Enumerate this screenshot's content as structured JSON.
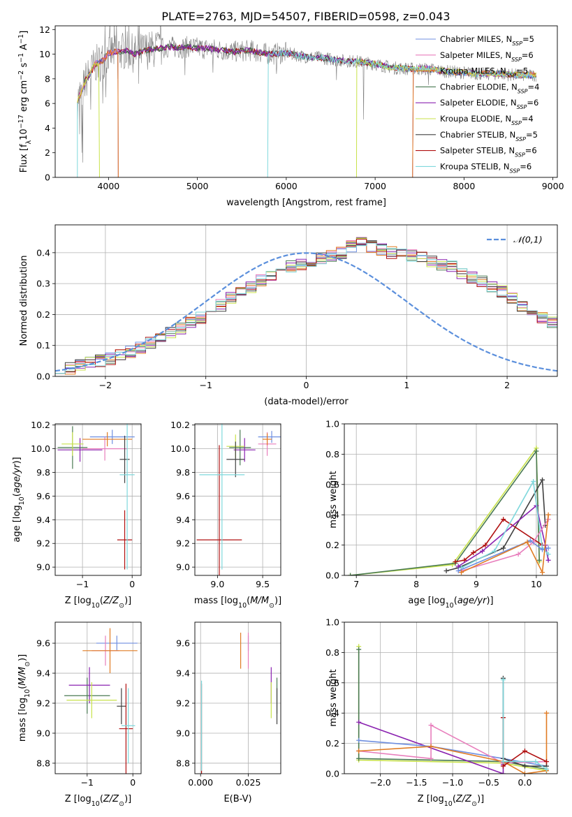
{
  "title": "PLATE=2763, MJD=54507, FIBERID=0598, z=0.043",
  "colors": {
    "Chabrier MILES": "#6f8fe0",
    "Salpeter MILES": "#e87ebc",
    "Kroupa MILES": "#e07b23",
    "Chabrier ELODIE": "#4a7a52",
    "Salpeter ELODIE": "#8a22b0",
    "Kroupa ELODIE": "#c8e24a",
    "Chabrier STELIB": "#404040",
    "Salpeter STELIB": "#b01010",
    "Kroupa STELIB": "#7fd8dc",
    "data": "#808080",
    "normal": "#5b8fdc"
  },
  "chart_data": [
    {
      "id": "spectrum",
      "type": "line",
      "xlabel": "wavelength [Angstrom, rest frame]",
      "ylabel": "Flux [f_λ 10^-17 erg cm^-2 s^-1 A^-1]",
      "xlim": [
        3400,
        9050
      ],
      "ylim": [
        0,
        12.3
      ],
      "xticks": [
        4000,
        5000,
        6000,
        7000,
        8000,
        9000
      ],
      "yticks": [
        0,
        2,
        4,
        6,
        8,
        10,
        12
      ],
      "legend_position": "upper right",
      "legend": [
        {
          "model": "Chabrier MILES",
          "label": "Chabrier MILES, N",
          "n": "=5"
        },
        {
          "model": "Salpeter MILES",
          "label": "Salpeter MILES, N",
          "n": "=6"
        },
        {
          "model": "Kroupa MILES",
          "label": "Kroupa MILES, N",
          "n": "=5"
        },
        {
          "model": "Chabrier ELODIE",
          "label": "Chabrier ELODIE, N",
          "n": "=4"
        },
        {
          "model": "Salpeter ELODIE",
          "label": "Salpeter ELODIE, N",
          "n": "=6"
        },
        {
          "model": "Kroupa ELODIE",
          "label": "Kroupa ELODIE, N",
          "n": "=4"
        },
        {
          "model": "Chabrier STELIB",
          "label": "Chabrier STELIB, N",
          "n": "=5"
        },
        {
          "model": "Salpeter STELIB",
          "label": "Salpeter STELIB, N",
          "n": "=6"
        },
        {
          "model": "Kroupa STELIB",
          "label": "Kroupa STELIB, N",
          "n": "=6"
        }
      ],
      "legend_sub": "SSP",
      "continuum": [
        [
          3650,
          6.3
        ],
        [
          3700,
          7.0
        ],
        [
          3750,
          8.0
        ],
        [
          3800,
          8.5
        ],
        [
          3850,
          9.2
        ],
        [
          3900,
          9.3
        ],
        [
          3950,
          9.6
        ],
        [
          4000,
          10.1
        ],
        [
          4100,
          10.2
        ],
        [
          4200,
          10.3
        ],
        [
          4300,
          10.0
        ],
        [
          4400,
          10.3
        ],
        [
          4500,
          10.4
        ],
        [
          4600,
          10.5
        ],
        [
          4700,
          10.6
        ],
        [
          4800,
          10.5
        ],
        [
          4900,
          10.6
        ],
        [
          5000,
          10.5
        ],
        [
          5200,
          10.4
        ],
        [
          5400,
          10.2
        ],
        [
          5600,
          10.3
        ],
        [
          5800,
          10.0
        ],
        [
          6000,
          10.1
        ],
        [
          6200,
          9.8
        ],
        [
          6400,
          9.7
        ],
        [
          6600,
          9.5
        ],
        [
          6800,
          9.4
        ],
        [
          7000,
          9.2
        ],
        [
          7200,
          8.9
        ],
        [
          7400,
          8.8
        ],
        [
          7600,
          8.8
        ],
        [
          7800,
          8.6
        ],
        [
          8000,
          8.5
        ],
        [
          8200,
          8.4
        ],
        [
          8400,
          8.4
        ],
        [
          8600,
          8.3
        ],
        [
          8800,
          8.3
        ]
      ],
      "model_dropouts": [
        {
          "model": "Chabrier MILES",
          "range": [
            4110,
            7420
          ]
        },
        {
          "model": "Salpeter MILES",
          "range": [
            4110,
            7420
          ]
        },
        {
          "model": "Kroupa MILES",
          "range": [
            4110,
            7420
          ]
        },
        {
          "model": "Kroupa ELODIE",
          "range": [
            3900,
            6790
          ]
        },
        {
          "model": "Kroupa STELIB",
          "range": [
            3650,
            5790
          ]
        }
      ],
      "data_dips": [
        [
          3675,
          3.5
        ],
        [
          3700,
          2.0
        ],
        [
          3710,
          1.2
        ],
        [
          3800,
          5.5
        ],
        [
          3935,
          6.0
        ],
        [
          3970,
          6.5
        ],
        [
          4105,
          8.0
        ],
        [
          4340,
          7.6
        ],
        [
          4860,
          8.3
        ],
        [
          5175,
          8.5
        ],
        [
          5890,
          8.4
        ],
        [
          6565,
          7.9
        ],
        [
          6870,
          4.7
        ],
        [
          7600,
          7.5
        ]
      ]
    },
    {
      "id": "residuals",
      "type": "histogram",
      "xlabel": "(data-model)/error",
      "ylabel": "Normed distribution",
      "xlim": [
        -2.5,
        2.5
      ],
      "ylim": [
        0,
        0.49
      ],
      "xticks": [
        -2,
        -1,
        0,
        1,
        2
      ],
      "yticks": [
        0.0,
        0.1,
        0.2,
        0.3,
        0.4
      ],
      "bin_width": 0.1,
      "bin_start": -2.5,
      "reference_label": "𝒩(0,1)",
      "mean_hist": [
        0.03,
        0.025,
        0.04,
        0.045,
        0.05,
        0.058,
        0.068,
        0.08,
        0.092,
        0.108,
        0.125,
        0.14,
        0.155,
        0.175,
        0.19,
        0.21,
        0.23,
        0.255,
        0.275,
        0.29,
        0.31,
        0.33,
        0.345,
        0.355,
        0.365,
        0.375,
        0.38,
        0.39,
        0.4,
        0.42,
        0.43,
        0.42,
        0.41,
        0.4,
        0.395,
        0.39,
        0.385,
        0.37,
        0.36,
        0.355,
        0.33,
        0.32,
        0.305,
        0.29,
        0.275,
        0.255,
        0.23,
        0.21,
        0.19,
        0.175,
        0.16,
        0.15,
        0.13,
        0.11,
        0.095,
        0.08,
        0.068,
        0.058,
        0.05,
        0.042,
        0.035,
        0.028,
        0.025,
        0.022,
        0.02,
        0.025,
        0.03,
        0.028,
        0.032,
        0.03
      ]
    },
    {
      "id": "age-vs-Z",
      "type": "errorbar",
      "xlabel": "Z [log10(Z/Z☉)]",
      "ylabel": "age  [log10(age/yr)]",
      "xlim": [
        -1.55,
        0.18
      ],
      "ylim": [
        8.93,
        10.21
      ],
      "xticks": [
        -1,
        0
      ],
      "yticks": [
        9.0,
        9.2,
        9.4,
        9.6,
        9.8,
        10.0,
        10.2
      ],
      "points": [
        {
          "model": "Chabrier MILES",
          "x": -0.4,
          "y": 10.1,
          "xerr": 0.45,
          "yerr": 0.06
        },
        {
          "model": "Salpeter MILES",
          "x": -0.55,
          "y": 10.0,
          "xerr": 0.45,
          "yerr": 0.1
        },
        {
          "model": "Kroupa MILES",
          "x": -0.5,
          "y": 10.08,
          "xerr": 0.5,
          "yerr": 0.06
        },
        {
          "model": "Chabrier ELODIE",
          "x": -1.2,
          "y": 10.01,
          "xerr": 0.3,
          "yerr": 0.18
        },
        {
          "model": "Salpeter ELODIE",
          "x": -1.05,
          "y": 9.99,
          "xerr": 0.45,
          "yerr": 0.1
        },
        {
          "model": "Kroupa ELODIE",
          "x": -1.2,
          "y": 10.04,
          "xerr": 0.22,
          "yerr": 0.1
        },
        {
          "model": "Chabrier STELIB",
          "x": -0.15,
          "y": 9.91,
          "xerr": 0.1,
          "yerr": 0.2
        },
        {
          "model": "Salpeter STELIB",
          "x": -0.15,
          "y": 9.23,
          "xerr": 0.15,
          "yerr": 0.25
        },
        {
          "model": "Kroupa STELIB",
          "x": -0.1,
          "y": 9.78,
          "xerr": 0.15,
          "yerr": 0.8
        }
      ]
    },
    {
      "id": "age-vs-mass",
      "type": "errorbar",
      "xlabel": "mass [log10(M/M☉)]",
      "ylabel": "",
      "xlim": [
        8.75,
        9.7
      ],
      "ylim": [
        8.93,
        10.21
      ],
      "xticks": [
        9.0,
        9.5
      ],
      "yticks": [
        9.0,
        9.2,
        9.4,
        9.6,
        9.8,
        10.0,
        10.2
      ],
      "points": [
        {
          "model": "Chabrier MILES",
          "x": 9.6,
          "y": 10.1,
          "xerr": 0.15,
          "yerr": 0.05
        },
        {
          "model": "Salpeter MILES",
          "x": 9.55,
          "y": 10.04,
          "xerr": 0.1,
          "yerr": 0.1
        },
        {
          "model": "Kroupa MILES",
          "x": 9.55,
          "y": 10.08,
          "xerr": 0.05,
          "yerr": 0.05
        },
        {
          "model": "Chabrier ELODIE",
          "x": 9.25,
          "y": 10.01,
          "xerr": 0.12,
          "yerr": 0.15
        },
        {
          "model": "Salpeter ELODIE",
          "x": 9.3,
          "y": 9.99,
          "xerr": 0.12,
          "yerr": 0.1
        },
        {
          "model": "Kroupa ELODIE",
          "x": 9.2,
          "y": 10.02,
          "xerr": 0.1,
          "yerr": 0.1
        },
        {
          "model": "Chabrier STELIB",
          "x": 9.2,
          "y": 9.91,
          "xerr": 0.1,
          "yerr": 0.15
        },
        {
          "model": "Salpeter STELIB",
          "x": 9.02,
          "y": 9.23,
          "xerr": 0.25,
          "yerr": 0.8
        },
        {
          "model": "Kroupa STELIB",
          "x": 9.05,
          "y": 9.78,
          "xerr": 0.25,
          "yerr": 0.8
        }
      ]
    },
    {
      "id": "weight-vs-age",
      "type": "line",
      "xlabel": "age  [log10(age/yr)]",
      "ylabel": "mass weight",
      "xlim": [
        6.8,
        10.35
      ],
      "ylim": [
        0,
        1.0
      ],
      "xticks": [
        7,
        8,
        9,
        10
      ],
      "yticks": [
        0.0,
        0.2,
        0.4,
        0.6,
        0.8,
        1.0
      ],
      "series": [
        {
          "model": "Kroupa ELODIE",
          "x": [
            6.9,
            8.6,
            10.0,
            10.05
          ],
          "y": [
            0.0,
            0.07,
            0.84,
            0.09
          ]
        },
        {
          "model": "Chabrier ELODIE",
          "x": [
            6.9,
            8.65,
            10.0,
            10.05
          ],
          "y": [
            0.0,
            0.08,
            0.82,
            0.1
          ]
        },
        {
          "model": "Chabrier STELIB",
          "x": [
            8.5,
            8.7,
            9.45,
            10.1,
            10.15
          ],
          "y": [
            0.03,
            0.05,
            0.18,
            0.63,
            0.33
          ]
        },
        {
          "model": "Salpeter STELIB",
          "x": [
            8.65,
            8.8,
            8.95,
            9.15,
            9.45,
            10.1
          ],
          "y": [
            0.09,
            0.1,
            0.15,
            0.2,
            0.37,
            0.2
          ]
        },
        {
          "model": "Salpeter ELODIE",
          "x": [
            8.7,
            9.1,
            10.0,
            10.15,
            10.2
          ],
          "y": [
            0.06,
            0.16,
            0.46,
            0.2,
            0.1
          ]
        },
        {
          "model": "Kroupa STELIB",
          "x": [
            8.75,
            9.3,
            9.95,
            10.1,
            10.2
          ],
          "y": [
            0.05,
            0.16,
            0.62,
            0.18,
            0.14
          ]
        },
        {
          "model": "Salpeter MILES",
          "x": [
            8.75,
            9.7,
            9.95,
            10.2
          ],
          "y": [
            0.03,
            0.14,
            0.22,
            0.37
          ]
        },
        {
          "model": "Chabrier MILES",
          "x": [
            8.7,
            9.9,
            10.1,
            10.2
          ],
          "y": [
            0.03,
            0.23,
            0.17,
            0.18
          ]
        },
        {
          "model": "Kroupa MILES",
          "x": [
            8.75,
            9.85,
            10.1,
            10.2
          ],
          "y": [
            0.02,
            0.22,
            0.02,
            0.4
          ]
        }
      ]
    },
    {
      "id": "mass-vs-Z",
      "type": "errorbar",
      "xlabel": "Z [log10(Z/Z☉)]",
      "ylabel": "mass [log10(M/M☉)]",
      "xlim": [
        -1.7,
        0.18
      ],
      "ylim": [
        8.73,
        9.74
      ],
      "xticks": [
        -1,
        0
      ],
      "yticks": [
        8.8,
        9.0,
        9.2,
        9.4,
        9.6
      ],
      "points": [
        {
          "model": "Chabrier MILES",
          "x": -0.35,
          "y": 9.6,
          "xerr": 0.45,
          "yerr": 0.05
        },
        {
          "model": "Salpeter MILES",
          "x": -0.6,
          "y": 9.55,
          "xerr": 0.3,
          "yerr": 0.1
        },
        {
          "model": "Kroupa MILES",
          "x": -0.5,
          "y": 9.55,
          "xerr": 0.6,
          "yerr": 0.15
        },
        {
          "model": "Chabrier ELODIE",
          "x": -1.0,
          "y": 9.25,
          "xerr": 0.5,
          "yerr": 0.12
        },
        {
          "model": "Salpeter ELODIE",
          "x": -0.95,
          "y": 9.32,
          "xerr": 0.45,
          "yerr": 0.12
        },
        {
          "model": "Kroupa ELODIE",
          "x": -0.9,
          "y": 9.22,
          "xerr": 0.55,
          "yerr": 0.12
        },
        {
          "model": "Chabrier STELIB",
          "x": -0.25,
          "y": 9.18,
          "xerr": 0.1,
          "yerr": 0.12
        },
        {
          "model": "Salpeter STELIB",
          "x": -0.15,
          "y": 9.03,
          "xerr": 0.15,
          "yerr": 0.3
        },
        {
          "model": "Kroupa STELIB",
          "x": -0.1,
          "y": 9.05,
          "xerr": 0.15,
          "yerr": 0.25
        }
      ]
    },
    {
      "id": "mass-vs-EBV",
      "type": "errorbar",
      "xlabel": "E(B-V)",
      "ylabel": "",
      "xlim": [
        -0.003,
        0.042
      ],
      "ylim": [
        8.73,
        9.74
      ],
      "xticks": [
        0.0,
        0.025
      ],
      "xtick_labels": [
        "0.000",
        "0.025"
      ],
      "yticks": [
        8.8,
        9.0,
        9.2,
        9.4,
        9.6
      ],
      "points": [
        {
          "model": "Chabrier MILES",
          "x": 0.025,
          "y": 9.6,
          "xerr": 0,
          "yerr": 0.05
        },
        {
          "model": "Salpeter MILES",
          "x": 0.025,
          "y": 9.55,
          "xerr": 0,
          "yerr": 0.12
        },
        {
          "model": "Kroupa MILES",
          "x": 0.021,
          "y": 9.55,
          "xerr": 0,
          "yerr": 0.12
        },
        {
          "model": "Chabrier ELODIE",
          "x": 0.04,
          "y": 9.25,
          "xerr": 0,
          "yerr": 0.12
        },
        {
          "model": "Salpeter ELODIE",
          "x": 0.037,
          "y": 9.32,
          "xerr": 0,
          "yerr": 0.12
        },
        {
          "model": "Kroupa ELODIE",
          "x": 0.037,
          "y": 9.22,
          "xerr": 0,
          "yerr": 0.12
        },
        {
          "model": "Chabrier STELIB",
          "x": 0.04,
          "y": 9.18,
          "xerr": 0,
          "yerr": 0.12
        },
        {
          "model": "Salpeter STELIB",
          "x": 0.0005,
          "y": 9.03,
          "xerr": 0,
          "yerr": 0.3
        },
        {
          "model": "Kroupa STELIB",
          "x": 0.0005,
          "y": 9.05,
          "xerr": 0,
          "yerr": 0.3
        }
      ]
    },
    {
      "id": "weight-vs-Z",
      "type": "line",
      "xlabel": "Z [log10(Z/Z☉)]",
      "ylabel": "mass weight",
      "xlim": [
        -2.5,
        0.45
      ],
      "ylim": [
        0,
        1.0
      ],
      "xticks": [
        -2.0,
        -1.5,
        -1.0,
        -0.5,
        0.0
      ],
      "yticks": [
        0.0,
        0.2,
        0.4,
        0.6,
        0.8,
        1.0
      ],
      "series": [
        {
          "model": "Kroupa ELODIE",
          "x": [
            -2.3,
            -2.3,
            -0.3,
            0.3
          ],
          "y": [
            0.84,
            0.09,
            0.07,
            0.02
          ]
        },
        {
          "model": "Chabrier ELODIE",
          "x": [
            -2.3,
            -2.3,
            -0.3,
            0.3
          ],
          "y": [
            0.82,
            0.1,
            0.08,
            0.03
          ]
        },
        {
          "model": "Salpeter ELODIE",
          "x": [
            -2.3,
            -0.3,
            -0.3
          ],
          "y": [
            0.34,
            0.0,
            0.06
          ]
        },
        {
          "model": "Chabrier MILES",
          "x": [
            -2.3,
            -1.3,
            -0.3,
            0.3
          ],
          "y": [
            0.22,
            0.18,
            0.1,
            0.05
          ]
        },
        {
          "model": "Salpeter MILES",
          "x": [
            -2.3,
            -1.3,
            -1.3,
            -0.3,
            0.3
          ],
          "y": [
            0.15,
            0.1,
            0.32,
            0.07,
            0.08
          ]
        },
        {
          "model": "Kroupa MILES",
          "x": [
            -2.3,
            -1.3,
            -0.3,
            0.0,
            0.3,
            0.3
          ],
          "y": [
            0.15,
            0.18,
            0.08,
            0.0,
            0.02,
            0.4
          ]
        },
        {
          "model": "Chabrier STELIB",
          "x": [
            -0.3,
            -0.3,
            0.0,
            0.3
          ],
          "y": [
            0.63,
            0.1,
            0.05,
            0.05
          ]
        },
        {
          "model": "Salpeter STELIB",
          "x": [
            -0.3,
            -0.3,
            0.0,
            0.3
          ],
          "y": [
            0.37,
            0.05,
            0.15,
            0.08
          ]
        },
        {
          "model": "Kroupa STELIB",
          "x": [
            -0.3,
            -0.3,
            0.15,
            0.3
          ],
          "y": [
            0.62,
            0.08,
            0.08,
            0.03
          ]
        }
      ]
    }
  ]
}
